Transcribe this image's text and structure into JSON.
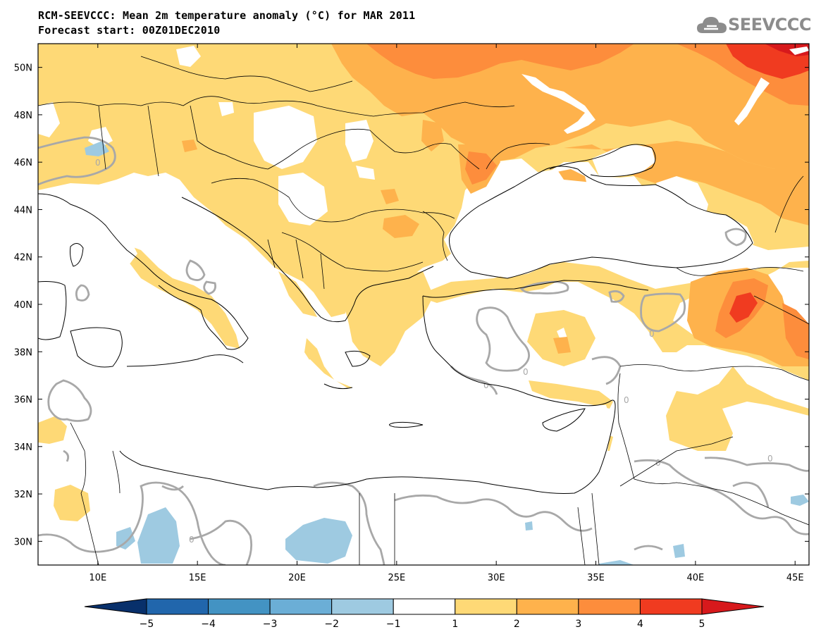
{
  "title": {
    "line1": "RCM-SEEVCCC: Mean 2m temperature anomaly (°C) for MAR 2011",
    "line2": "Forecast start: 00Z01DEC2010"
  },
  "logo": {
    "text": "SEEVCCC",
    "icon": "cloud-logo-icon"
  },
  "map": {
    "lon_range": [
      7,
      45.7
    ],
    "lat_range": [
      29,
      51
    ],
    "lon_ticks": [
      10,
      15,
      20,
      25,
      30,
      35,
      40,
      45
    ],
    "lon_tick_labels": [
      "10E",
      "15E",
      "20E",
      "25E",
      "30E",
      "35E",
      "40E",
      "45E"
    ],
    "lat_ticks": [
      30,
      32,
      34,
      36,
      38,
      40,
      42,
      44,
      46,
      48,
      50
    ],
    "lat_tick_labels": [
      "30N",
      "32N",
      "34N",
      "36N",
      "38N",
      "40N",
      "42N",
      "44N",
      "46N",
      "48N",
      "50N"
    ],
    "contour_label": "0"
  },
  "colorbar": {
    "levels": [
      -5,
      -4,
      -3,
      -2,
      -1,
      1,
      2,
      3,
      4,
      5
    ],
    "labels": [
      "−5",
      "−4",
      "−3",
      "−2",
      "−1",
      "1",
      "2",
      "3",
      "4",
      "5"
    ],
    "colors": [
      "#08306b",
      "#2166ac",
      "#4393c3",
      "#6baed6",
      "#9ecae1",
      "#ffffff",
      "#fed976",
      "#feb24c",
      "#fd8d3c",
      "#f03b20",
      "#d7191c"
    ]
  }
}
